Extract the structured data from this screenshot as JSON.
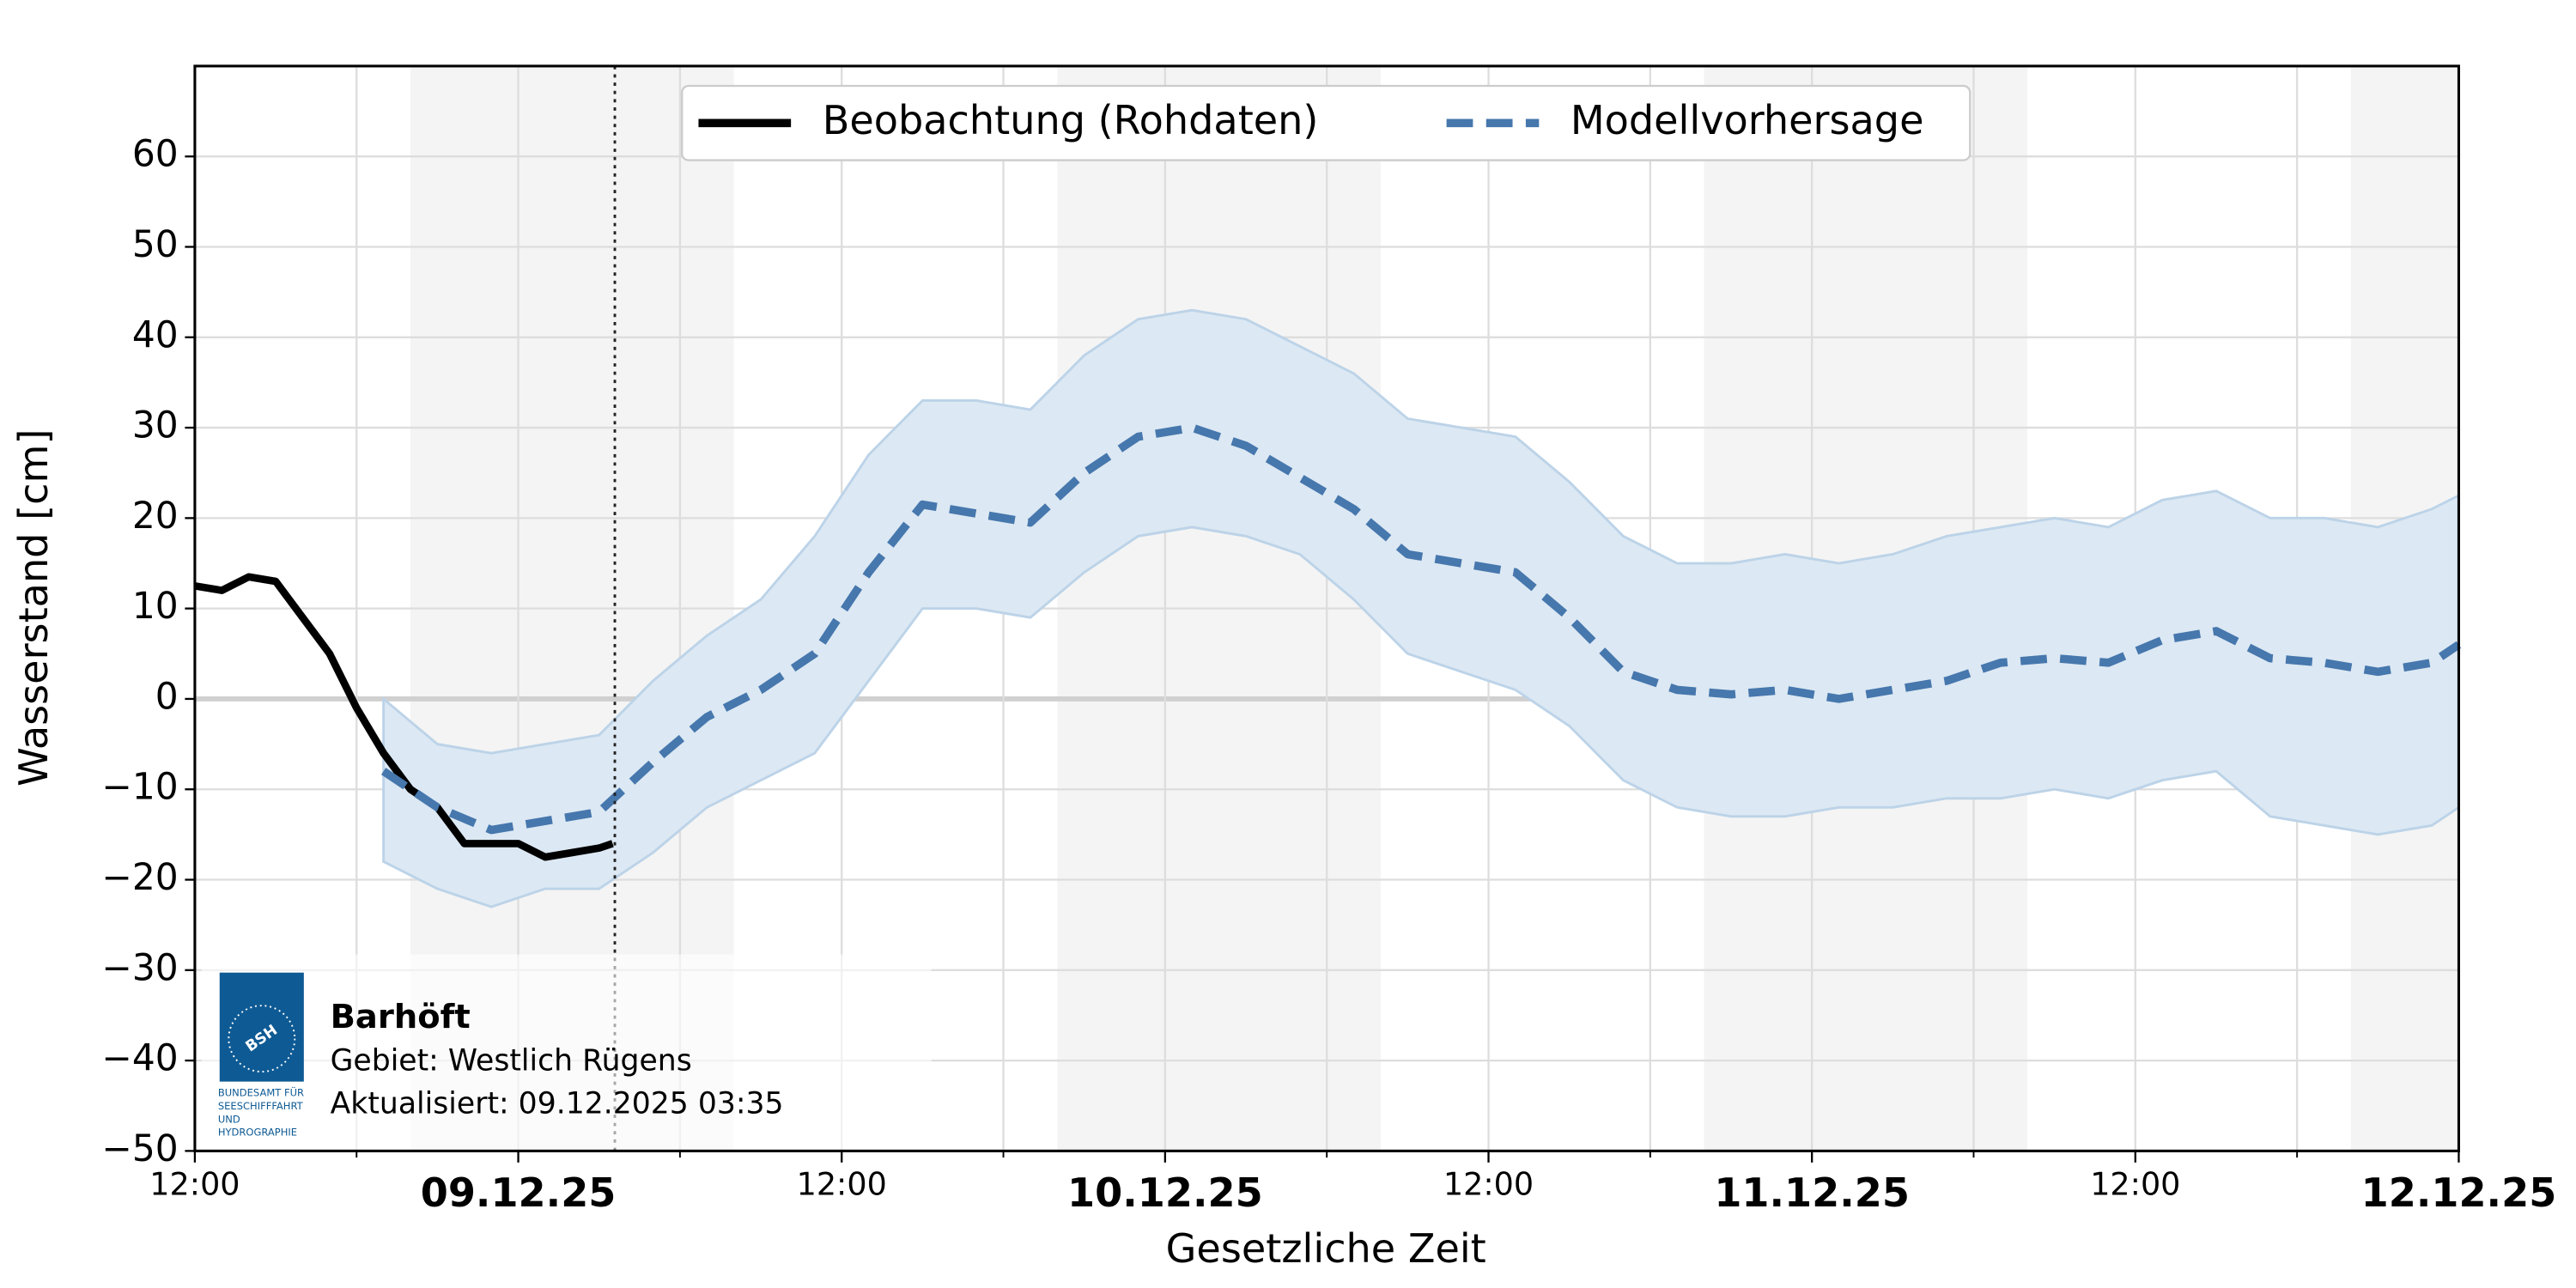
{
  "chart_data": {
    "type": "line",
    "ylabel": "Wasserstand [cm]",
    "xlabel": "Gesetzliche Zeit",
    "xlim": [
      "2025-12-08T12:00",
      "2025-12-12T00:00"
    ],
    "xticks": [
      {
        "value": "2025-12-08T12:00",
        "label": "12:00"
      },
      {
        "value": "2025-12-09T00:00",
        "label": "09.12.25"
      },
      {
        "value": "2025-12-09T12:00",
        "label": "12:00"
      },
      {
        "value": "2025-12-10T00:00",
        "label": "10.12.25"
      },
      {
        "value": "2025-12-10T12:00",
        "label": "12:00"
      },
      {
        "value": "2025-12-11T00:00",
        "label": "11.12.25"
      },
      {
        "value": "2025-12-11T12:00",
        "label": "12:00"
      },
      {
        "value": "2025-12-12T00:00",
        "label": "12.12.25"
      }
    ],
    "xminorticks": [
      "2025-12-08T18:00",
      "2025-12-09T06:00",
      "2025-12-09T18:00",
      "2025-12-10T06:00",
      "2025-12-10T18:00",
      "2025-12-11T06:00",
      "2025-12-11T18:00"
    ],
    "ylim": [
      -50,
      70
    ],
    "yticks": [
      {
        "value": -50,
        "label": "−50"
      },
      {
        "value": -40,
        "label": "−40"
      },
      {
        "value": -30,
        "label": "−30"
      },
      {
        "value": -20,
        "label": "−20"
      },
      {
        "value": -10,
        "label": "−10"
      },
      0,
      10,
      20,
      30,
      40,
      50,
      60
    ],
    "grid": true,
    "shaded_periods": [
      [
        "2025-12-08T20:00",
        "2025-12-09T08:00"
      ],
      [
        "2025-12-09T20:00",
        "2025-12-10T08:00"
      ],
      [
        "2025-12-10T20:00",
        "2025-12-11T08:00"
      ],
      [
        "2025-12-11T20:00",
        "2025-12-12T00:00"
      ]
    ],
    "now": "2025-12-09T03:35",
    "legend": "upper center",
    "series": [
      {
        "name": "Beobachtung (Rohdaten)",
        "color": "#000000",
        "x": [
          "2025-12-08T12:00",
          "2025-12-08T13:00",
          "2025-12-08T14:00",
          "2025-12-08T15:00",
          "2025-12-08T16:00",
          "2025-12-08T17:00",
          "2025-12-08T18:00",
          "2025-12-08T19:00",
          "2025-12-08T20:00",
          "2025-12-08T21:00",
          "2025-12-08T22:00",
          "2025-12-08T23:00",
          "2025-12-09T00:00",
          "2025-12-09T01:00",
          "2025-12-09T02:00",
          "2025-12-09T03:00",
          "2025-12-09T03:30"
        ],
        "values": [
          12.5,
          12,
          13.5,
          13,
          9,
          5,
          -1,
          -6,
          -10,
          -12,
          -16,
          -16,
          -16,
          -17.5,
          -17,
          -16.5,
          -16
        ]
      },
      {
        "name": "Modellvorhersage",
        "color": "#4677ad",
        "band_color": "#dce8f3",
        "x": [
          "2025-12-08T19:00",
          "2025-12-08T21:00",
          "2025-12-08T23:00",
          "2025-12-09T01:00",
          "2025-12-09T03:00",
          "2025-12-09T05:00",
          "2025-12-09T07:00",
          "2025-12-09T09:00",
          "2025-12-09T11:00",
          "2025-12-09T13:00",
          "2025-12-09T15:00",
          "2025-12-09T17:00",
          "2025-12-09T19:00",
          "2025-12-09T21:00",
          "2025-12-09T23:00",
          "2025-12-10T01:00",
          "2025-12-10T03:00",
          "2025-12-10T05:00",
          "2025-12-10T07:00",
          "2025-12-10T09:00",
          "2025-12-10T11:00",
          "2025-12-10T13:00",
          "2025-12-10T15:00",
          "2025-12-10T17:00",
          "2025-12-10T19:00",
          "2025-12-10T21:00",
          "2025-12-10T23:00",
          "2025-12-11T01:00",
          "2025-12-11T03:00",
          "2025-12-11T05:00",
          "2025-12-11T07:00",
          "2025-12-11T09:00",
          "2025-12-11T11:00",
          "2025-12-11T13:00",
          "2025-12-11T15:00",
          "2025-12-11T17:00",
          "2025-12-11T19:00",
          "2025-12-11T21:00",
          "2025-12-11T23:00",
          "2025-12-12T00:00"
        ],
        "values": [
          -8,
          -12,
          -14.5,
          -13.5,
          -12.5,
          -7,
          -2,
          1,
          5,
          14,
          21.5,
          20.5,
          19.5,
          25,
          29,
          30,
          28,
          24.5,
          21,
          16,
          15,
          14,
          9,
          3,
          1,
          0.5,
          1,
          0,
          1,
          2,
          4,
          4.5,
          4,
          6.5,
          7.5,
          4.5,
          4,
          3,
          4,
          6
        ],
        "lower": [
          -18,
          -21,
          -23,
          -21,
          -21,
          -17,
          -12,
          -9,
          -6,
          2,
          10,
          10,
          9,
          14,
          18,
          19,
          18,
          16,
          11,
          5,
          3,
          1,
          -3,
          -9,
          -12,
          -13,
          -13,
          -12,
          -12,
          -11,
          -11,
          -10,
          -11,
          -9,
          -8,
          -13,
          -14,
          -15,
          -14,
          -12
        ],
        "upper": [
          0,
          -5,
          -6,
          -5,
          -4,
          2,
          7,
          11,
          18,
          27,
          33,
          33,
          32,
          38,
          42,
          43,
          42,
          39,
          36,
          31,
          30,
          29,
          24,
          18,
          15,
          15,
          16,
          15,
          16,
          18,
          19,
          20,
          19,
          22,
          23,
          20,
          20,
          19,
          21,
          22.5
        ]
      }
    ]
  },
  "info": {
    "station": "Barhöft",
    "area": "Gebiet: Westlich Rügens",
    "updated": "Aktualisiert: 09.12.2025 03:35",
    "logo_text": "BSH",
    "logo_caption": [
      "BUNDESAMT FÜR",
      "SEESCHIFFFAHRT",
      "UND",
      "HYDROGRAPHIE"
    ]
  }
}
